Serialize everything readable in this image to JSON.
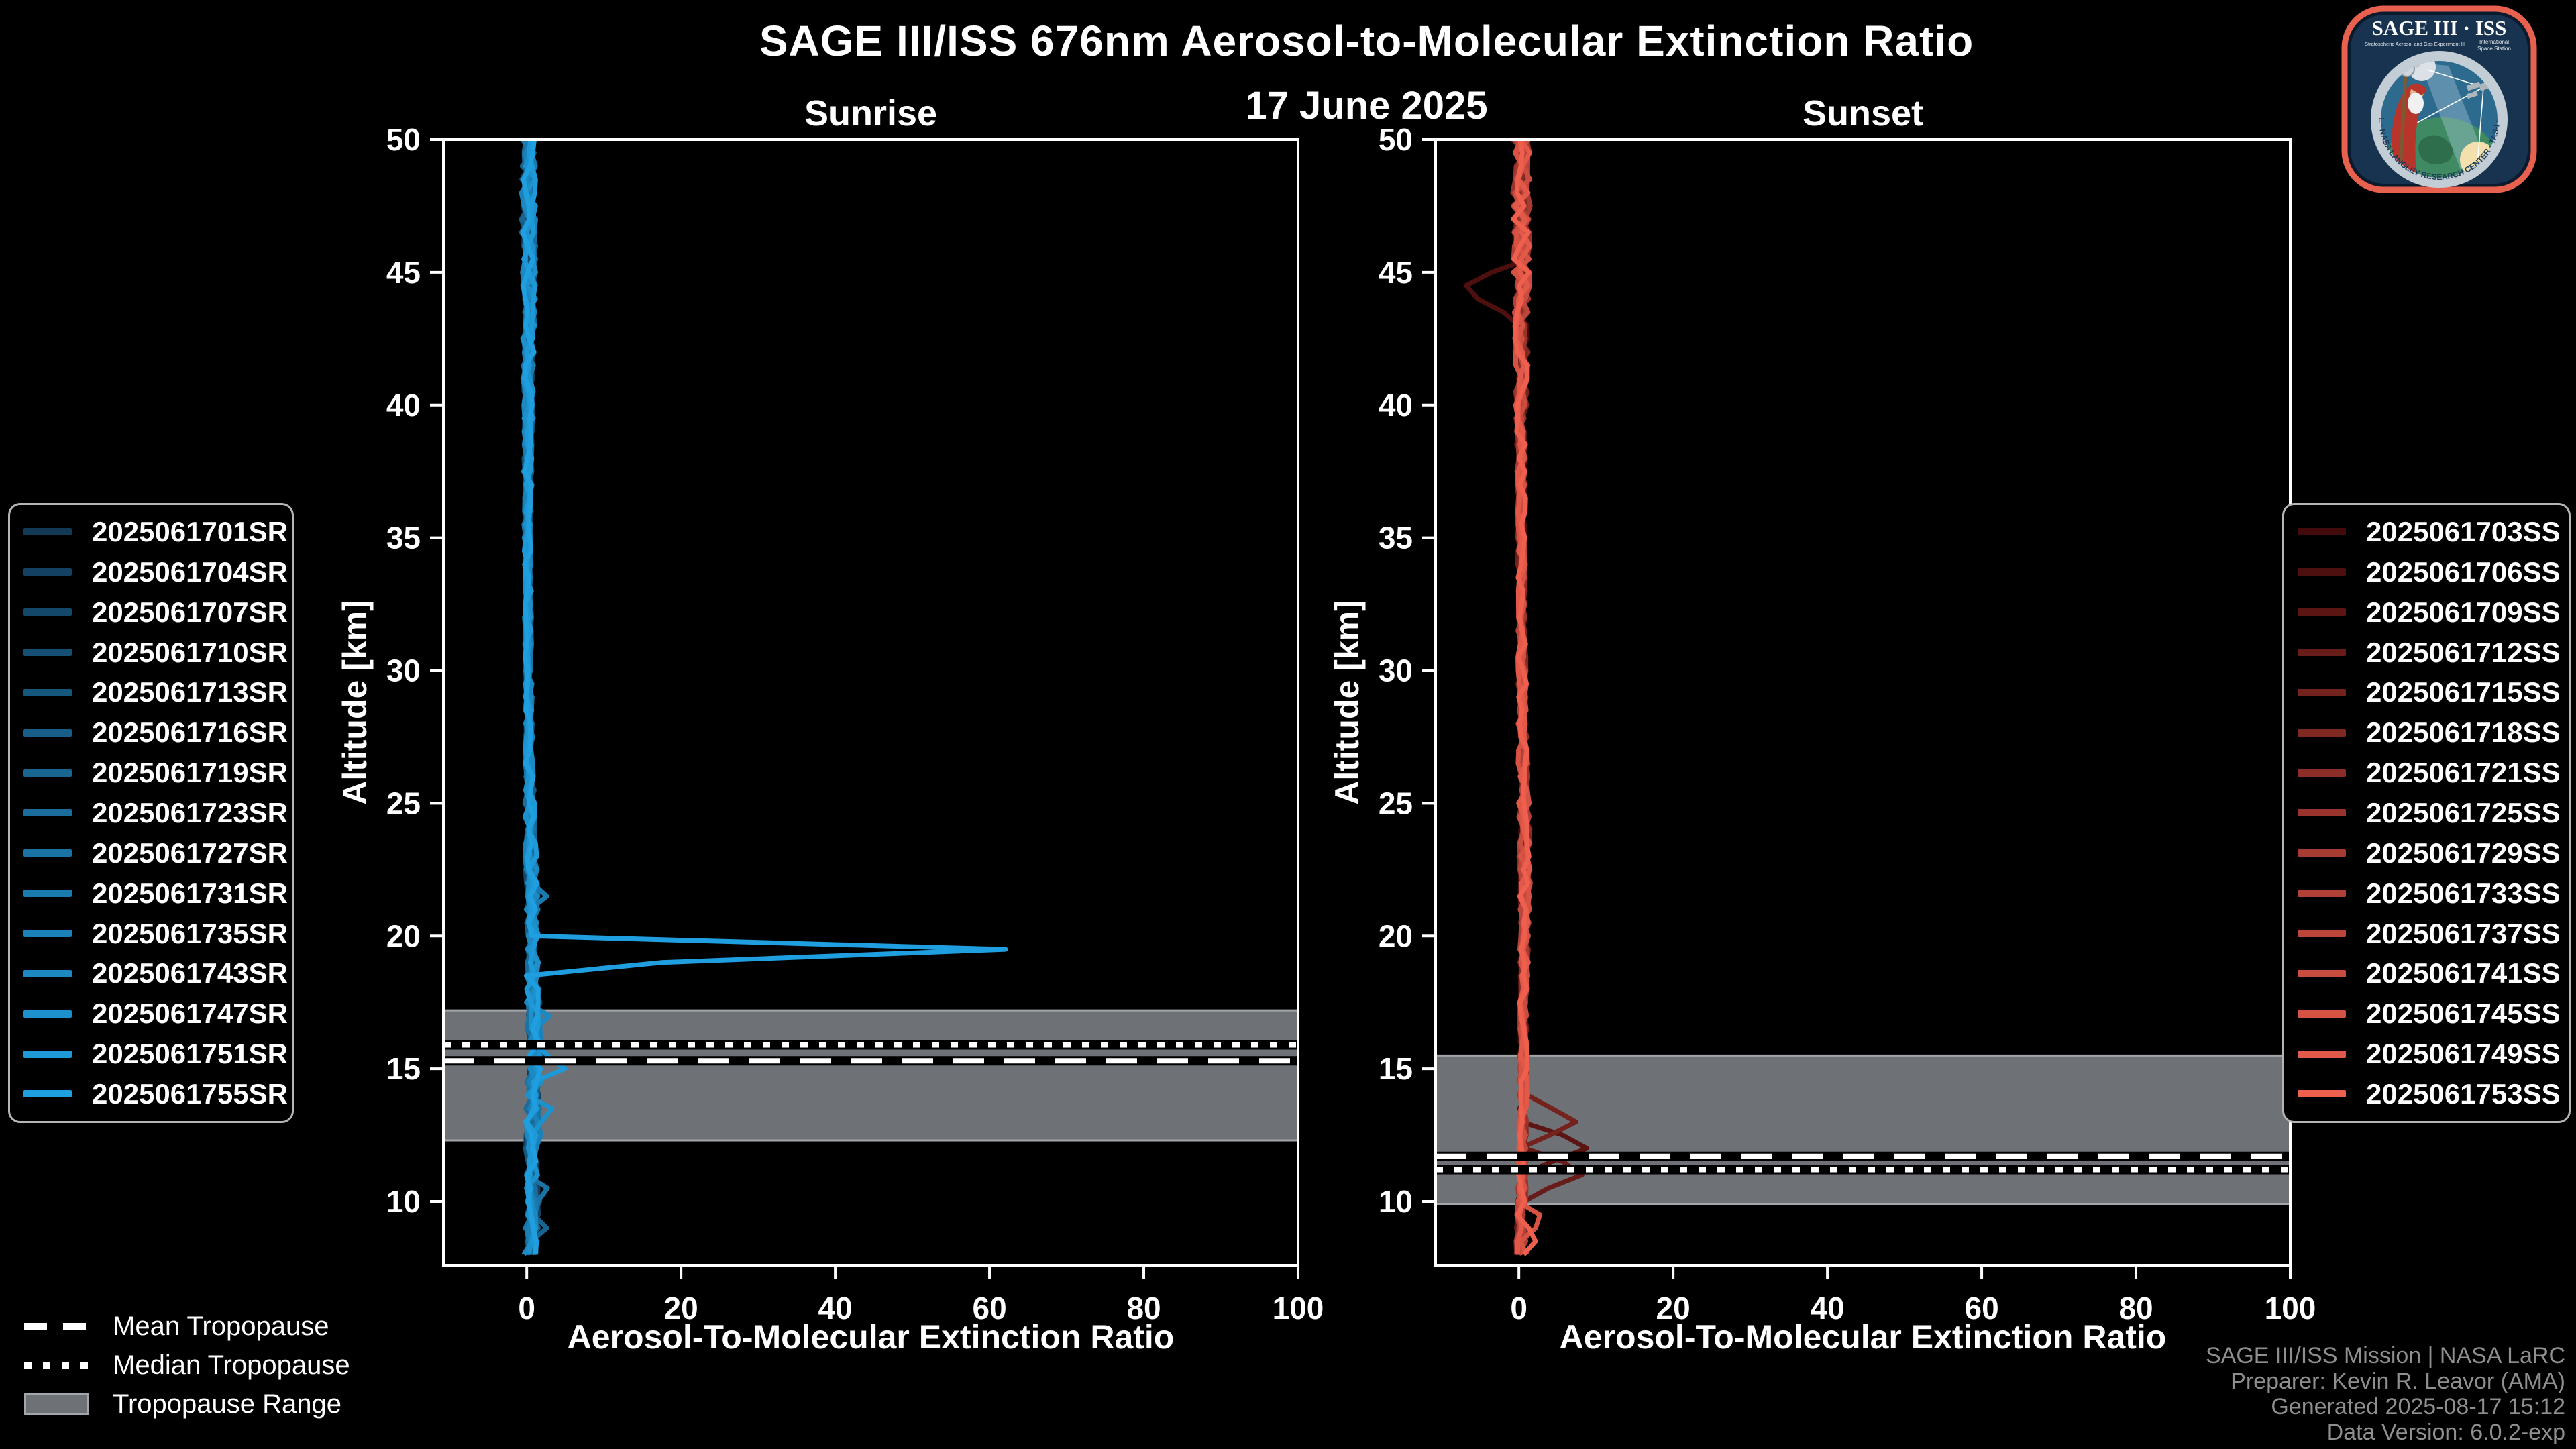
{
  "header": {
    "title": "SAGE III/ISS 676nm Aerosol-to-Molecular Extinction Ratio",
    "date": "17 June 2025"
  },
  "logo": {
    "title": "SAGE III · ISS",
    "caption_left": "Stratospheric Aerosol and Gas Experiment III",
    "caption_right_line1": "International",
    "caption_right_line2": "Space Station",
    "ring_text": "BALL · NASA LANGLEY RESEARCH CENTER · TAS-I · ESA"
  },
  "tropopause_legend": {
    "mean": "Mean Tropopause",
    "median": "Median Tropopause",
    "range": "Tropopause Range"
  },
  "credits": {
    "lines": [
      "SAGE III/ISS Mission | NASA LaRC",
      "Preparer: Kevin R. Leavor (AMA)",
      "Generated 2025-08-17 15:12",
      "Data Version: 6.0.2-exp"
    ]
  },
  "colors": {
    "background": "#000000",
    "axis": "#ffffff",
    "tick_label": "#ffffff",
    "tropopause_band": "#6e7176",
    "tropopause_band_edge": "#a2a6ab",
    "tropopause_line": "#ffffff",
    "tropopause_line_outline": "#000000",
    "legend_border": "#b5b5b5",
    "credits_text": "#8f8f8f"
  },
  "chart_data": [
    {
      "type": "line",
      "id": "sunrise",
      "title": "Sunrise",
      "xlabel": "Aerosol-To-Molecular Extinction Ratio",
      "ylabel": "Altitude [km]",
      "xlim": [
        -10.8,
        100
      ],
      "ylim": [
        7.6,
        50
      ],
      "xticks": [
        0,
        20,
        40,
        60,
        80,
        100
      ],
      "yticks": [
        10,
        15,
        20,
        25,
        30,
        35,
        40,
        45,
        50
      ],
      "grid": false,
      "legend_position": "outside-left",
      "tropopause": {
        "mean_km": 15.3,
        "median_km": 15.9,
        "range_km": [
          12.3,
          17.2
        ]
      },
      "series": [
        {
          "name": "2025061701SR",
          "color": "#123a57"
        },
        {
          "name": "2025061704SR",
          "color": "#134161"
        },
        {
          "name": "2025061707SR",
          "color": "#14486a"
        },
        {
          "name": "2025061710SR",
          "color": "#154f74"
        },
        {
          "name": "2025061713SR",
          "color": "#16577e"
        },
        {
          "name": "2025061716SR",
          "color": "#175e88"
        },
        {
          "name": "2025061719SR",
          "color": "#186591"
        },
        {
          "name": "2025061723SR",
          "color": "#196c9b"
        },
        {
          "name": "2025061727SR",
          "color": "#1974a5"
        },
        {
          "name": "2025061731SR",
          "color": "#1a7baf"
        },
        {
          "name": "2025061735SR",
          "color": "#1b82b9"
        },
        {
          "name": "2025061743SR",
          "color": "#1c89c2"
        },
        {
          "name": "2025061747SR",
          "color": "#1d91cc"
        },
        {
          "name": "2025061751SR",
          "color": "#1e98d6"
        },
        {
          "name": "2025061755SR",
          "color": "#1f9fe0"
        }
      ],
      "profile_base_km_ratio": [
        [
          50,
          0.2
        ],
        [
          45,
          0.3
        ],
        [
          40,
          0.2
        ],
        [
          35,
          0.1
        ],
        [
          30,
          0.2
        ],
        [
          25,
          0.4
        ],
        [
          22,
          0.6
        ],
        [
          20,
          0.8
        ],
        [
          18,
          0.8
        ],
        [
          16,
          1.0
        ],
        [
          15,
          1.1
        ],
        [
          14,
          0.8
        ],
        [
          12,
          0.6
        ],
        [
          10,
          0.8
        ],
        [
          8.5,
          0.6
        ],
        [
          7.6,
          0.4
        ]
      ],
      "noise_amp_km": [
        [
          50,
          0.9
        ],
        [
          46,
          1.0
        ],
        [
          42,
          0.8
        ],
        [
          36,
          0.5
        ],
        [
          30,
          0.45
        ],
        [
          26,
          0.6
        ],
        [
          23,
          0.8
        ],
        [
          20,
          0.8
        ],
        [
          18,
          0.9
        ],
        [
          15,
          1.0
        ],
        [
          12,
          0.8
        ],
        [
          10,
          0.9
        ],
        [
          7.6,
          0.9
        ]
      ],
      "features": [
        {
          "series": 14,
          "apex_km": 19.45,
          "value": 67,
          "halfwidth_km": 0.55
        },
        {
          "series": 13,
          "apex_km": 15.05,
          "value": 5.2,
          "halfwidth_km": 0.6
        },
        {
          "series": 11,
          "apex_km": 16.9,
          "value": 3.4,
          "halfwidth_km": 0.5
        },
        {
          "series": 12,
          "apex_km": 13.4,
          "value": 3.8,
          "halfwidth_km": 0.55
        },
        {
          "series": 10,
          "apex_km": 12.3,
          "value": 2.8,
          "halfwidth_km": 0.45
        },
        {
          "series": 9,
          "apex_km": 21.5,
          "value": 2.6,
          "halfwidth_km": 0.5
        },
        {
          "series": 8,
          "apex_km": 10.4,
          "value": 3.0,
          "halfwidth_km": 0.6
        },
        {
          "series": 6,
          "apex_km": 9.0,
          "value": 2.6,
          "halfwidth_km": 0.5
        }
      ],
      "step_km": 0.5
    },
    {
      "type": "line",
      "id": "sunset",
      "title": "Sunset",
      "xlabel": "Aerosol-To-Molecular Extinction Ratio",
      "ylabel": "Altitude [km]",
      "xlim": [
        -10.8,
        100
      ],
      "ylim": [
        7.6,
        50
      ],
      "xticks": [
        0,
        20,
        40,
        60,
        80,
        100
      ],
      "yticks": [
        10,
        15,
        20,
        25,
        30,
        35,
        40,
        45,
        50
      ],
      "grid": false,
      "legend_position": "outside-right",
      "tropopause": {
        "mean_km": 11.7,
        "median_km": 11.2,
        "range_km": [
          9.9,
          15.5
        ]
      },
      "series": [
        {
          "name": "2025061703SS",
          "color": "#420a0a"
        },
        {
          "name": "2025061706SS",
          "color": "#4e100f"
        },
        {
          "name": "2025061709SS",
          "color": "#5b1614"
        },
        {
          "name": "2025061712SS",
          "color": "#671c19"
        },
        {
          "name": "2025061715SS",
          "color": "#73221d"
        },
        {
          "name": "2025061718SS",
          "color": "#802822"
        },
        {
          "name": "2025061721SS",
          "color": "#8c2e27"
        },
        {
          "name": "2025061725SS",
          "color": "#98342c"
        },
        {
          "name": "2025061729SS",
          "color": "#a53b31"
        },
        {
          "name": "2025061733SS",
          "color": "#b14036"
        },
        {
          "name": "2025061737SS",
          "color": "#bd463a"
        },
        {
          "name": "2025061741SS",
          "color": "#c94d3f"
        },
        {
          "name": "2025061745SS",
          "color": "#d65344"
        },
        {
          "name": "2025061749SS",
          "color": "#e25949"
        },
        {
          "name": "2025061753SS",
          "color": "#ef5f4e"
        }
      ],
      "profile_base_km_ratio": [
        [
          50,
          0.3
        ],
        [
          45,
          0.4
        ],
        [
          40,
          0.3
        ],
        [
          35,
          0.3
        ],
        [
          30,
          0.4
        ],
        [
          25,
          0.6
        ],
        [
          22,
          0.8
        ],
        [
          20,
          0.7
        ],
        [
          17,
          0.6
        ],
        [
          14,
          0.6
        ],
        [
          12,
          0.5
        ],
        [
          10,
          0.4
        ],
        [
          8,
          0.3
        ],
        [
          7.6,
          0.2
        ]
      ],
      "noise_amp_km": [
        [
          50,
          1.1
        ],
        [
          46,
          1.2
        ],
        [
          43,
          1.0
        ],
        [
          38,
          0.6
        ],
        [
          32,
          0.5
        ],
        [
          28,
          0.6
        ],
        [
          24,
          0.8
        ],
        [
          20,
          0.6
        ],
        [
          16,
          0.5
        ],
        [
          12,
          0.6
        ],
        [
          9,
          0.7
        ],
        [
          7.6,
          0.8
        ]
      ],
      "features": [
        {
          "series": 1,
          "apex_km": 44.4,
          "value": -7.4,
          "halfwidth_km": 1.1
        },
        {
          "series": 2,
          "apex_km": 12.05,
          "value": 9.2,
          "halfwidth_km": 0.9
        },
        {
          "series": 4,
          "apex_km": 13.0,
          "value": 7.4,
          "halfwidth_km": 0.9
        },
        {
          "series": 3,
          "apex_km": 11.1,
          "value": 9.0,
          "halfwidth_km": 0.9
        },
        {
          "series": 12,
          "apex_km": 9.3,
          "value": 3.6,
          "halfwidth_km": 0.55
        },
        {
          "series": 14,
          "apex_km": 8.6,
          "value": 2.4,
          "halfwidth_km": 0.5
        }
      ],
      "step_km": 0.5
    }
  ]
}
